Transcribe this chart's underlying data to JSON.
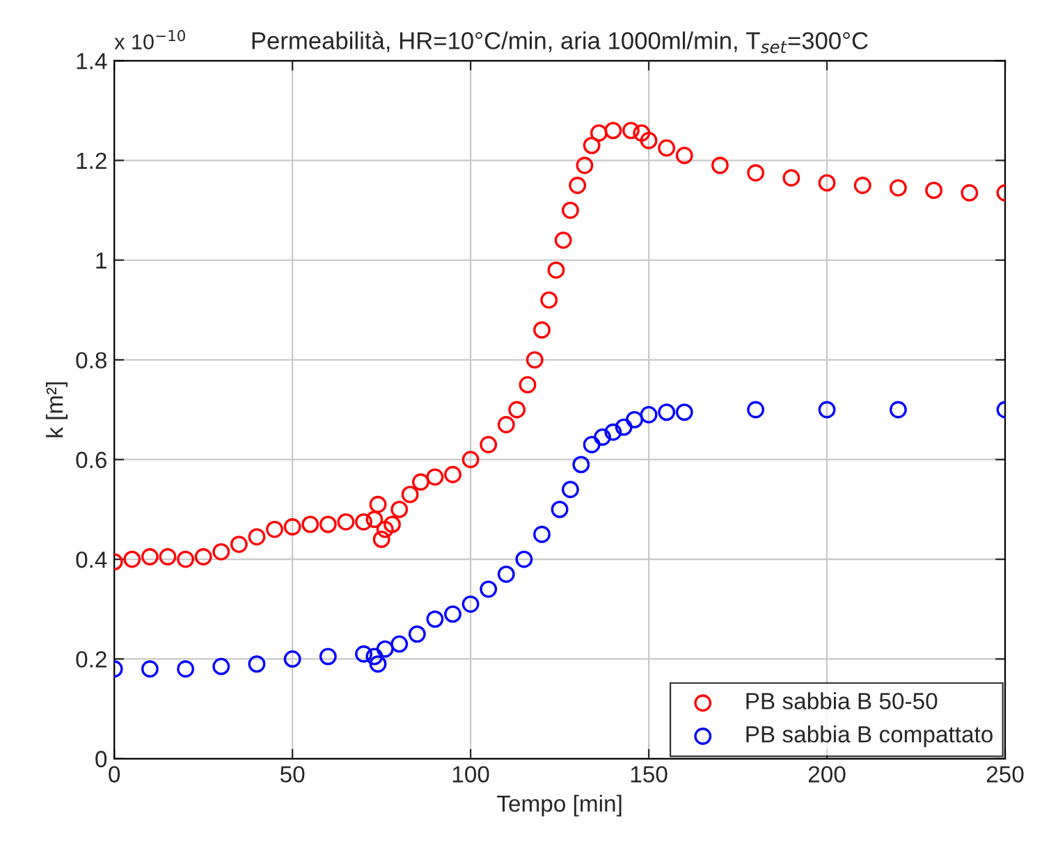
{
  "chart_data": {
    "type": "scatter",
    "title": "Permeabilità, HR=10°C/min, aria 1000ml/min, T$_{set}$=300°C",
    "xlabel": "Tempo [min]",
    "ylabel": "k [m²]",
    "annotations": [
      "x 10$^{−10}$"
    ],
    "xlim": [
      0,
      250
    ],
    "ylim": [
      0,
      1.4
    ],
    "xticks": [
      0,
      50,
      100,
      150,
      200,
      250
    ],
    "yticks": [
      0,
      0.2,
      0.4,
      0.6,
      0.8,
      1,
      1.2,
      1.4
    ],
    "grid": true,
    "legend": "bottom right",
    "marker": "circle",
    "series": [
      {
        "name": "PB sabbia B 50-50",
        "color": "#ff0000",
        "x": [
          0,
          5,
          10,
          15,
          20,
          25,
          30,
          35,
          40,
          45,
          50,
          55,
          60,
          65,
          70,
          73,
          74,
          75,
          76,
          78,
          80,
          83,
          86,
          90,
          95,
          100,
          105,
          110,
          113,
          116,
          118,
          120,
          122,
          124,
          126,
          128,
          130,
          132,
          134,
          136,
          140,
          145,
          148,
          150,
          155,
          160,
          170,
          180,
          190,
          200,
          210,
          220,
          230,
          240,
          250
        ],
        "values": [
          0.395,
          0.4,
          0.405,
          0.405,
          0.4,
          0.405,
          0.415,
          0.43,
          0.445,
          0.46,
          0.465,
          0.47,
          0.47,
          0.475,
          0.475,
          0.48,
          0.51,
          0.44,
          0.46,
          0.47,
          0.5,
          0.53,
          0.555,
          0.565,
          0.57,
          0.6,
          0.63,
          0.67,
          0.7,
          0.75,
          0.8,
          0.86,
          0.92,
          0.98,
          1.04,
          1.1,
          1.15,
          1.19,
          1.23,
          1.255,
          1.26,
          1.26,
          1.255,
          1.24,
          1.225,
          1.21,
          1.19,
          1.175,
          1.165,
          1.155,
          1.15,
          1.145,
          1.14,
          1.135,
          1.135
        ]
      },
      {
        "name": "PB sabbia B compattato",
        "color": "#0000ff",
        "x": [
          0,
          10,
          20,
          30,
          40,
          50,
          60,
          70,
          73,
          74,
          76,
          80,
          85,
          90,
          95,
          100,
          105,
          110,
          115,
          120,
          125,
          128,
          131,
          134,
          137,
          140,
          143,
          146,
          150,
          155,
          160,
          180,
          200,
          220,
          250
        ],
        "values": [
          0.18,
          0.18,
          0.18,
          0.185,
          0.19,
          0.2,
          0.205,
          0.21,
          0.205,
          0.19,
          0.22,
          0.23,
          0.25,
          0.28,
          0.29,
          0.31,
          0.34,
          0.37,
          0.4,
          0.45,
          0.5,
          0.54,
          0.59,
          0.63,
          0.645,
          0.655,
          0.665,
          0.68,
          0.69,
          0.695,
          0.695,
          0.7,
          0.7,
          0.7,
          0.7
        ]
      }
    ]
  }
}
